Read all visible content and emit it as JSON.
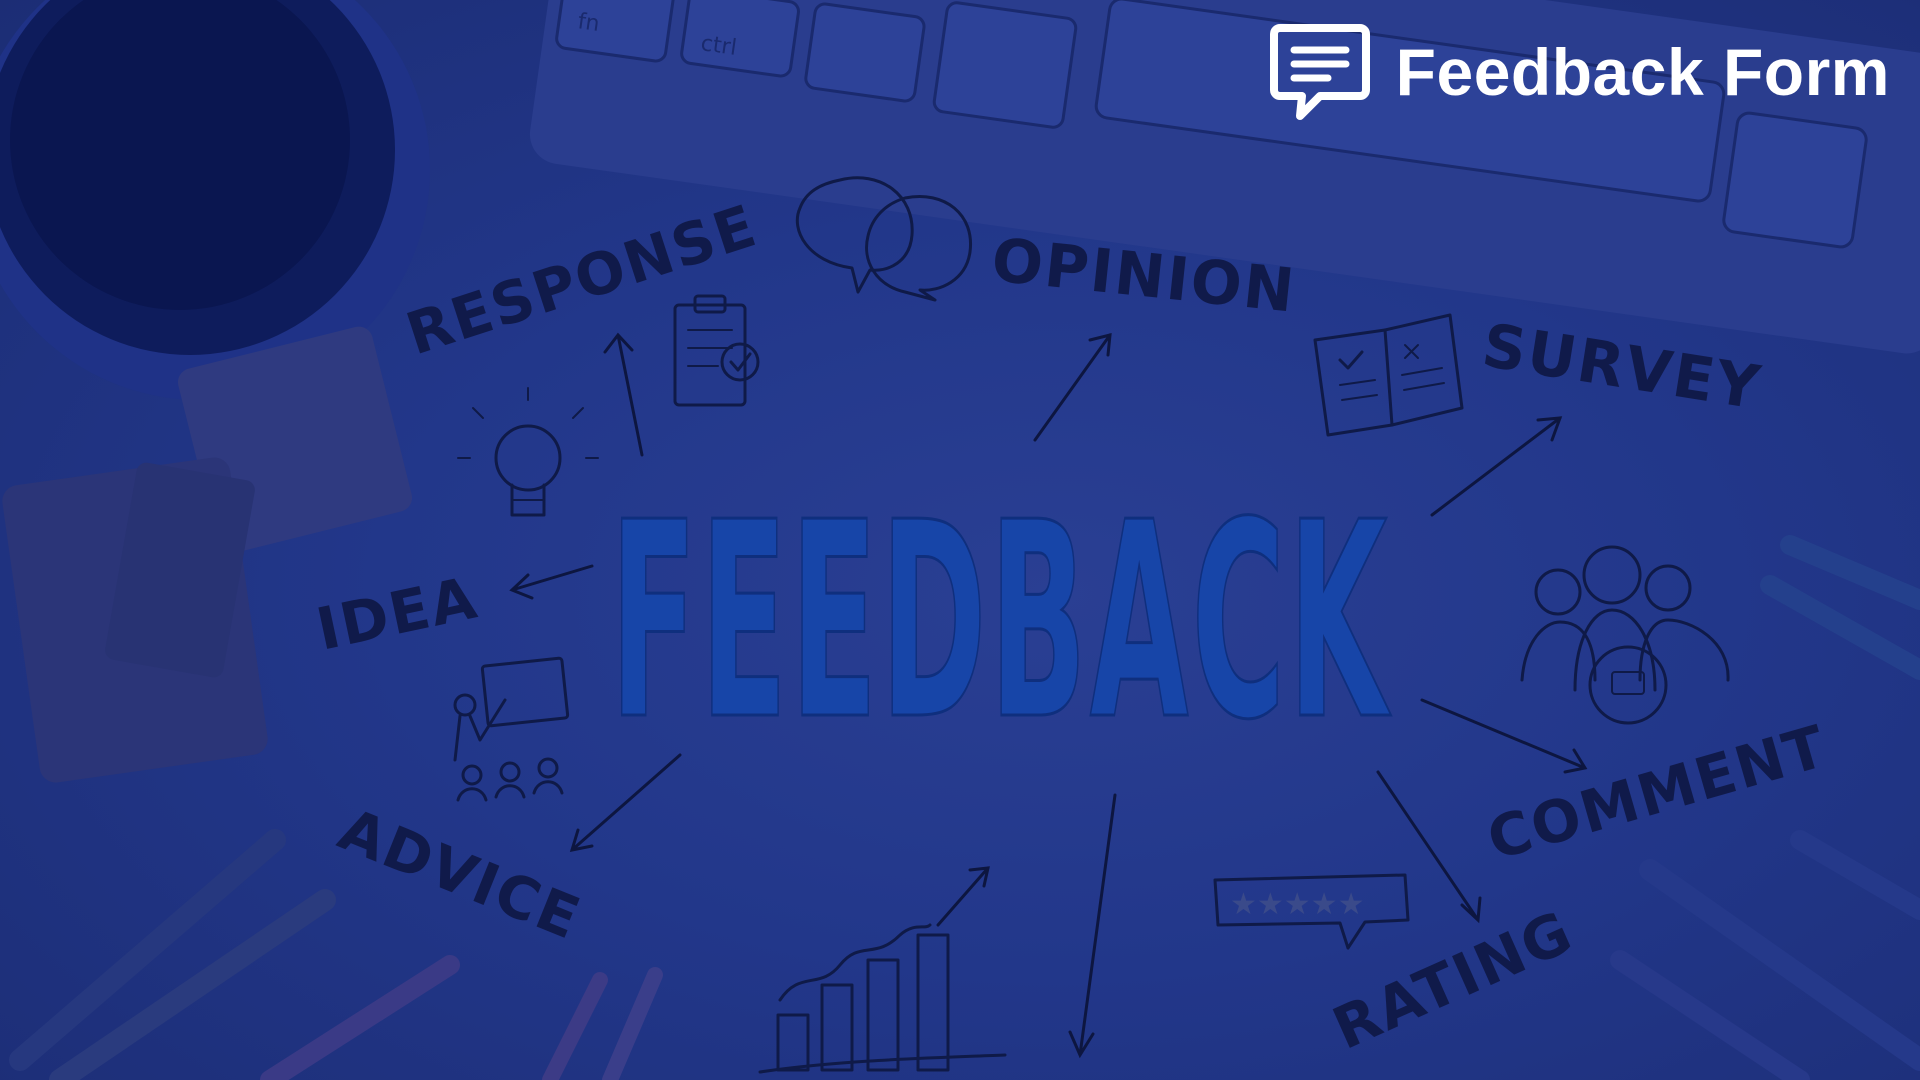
{
  "header": {
    "title": "Feedback Form",
    "icon": "chat-bubble-lines-icon"
  },
  "hero": {
    "main_word": "FEEDBACK",
    "concepts": {
      "response": "RESPONSE",
      "opinion": "OPINION",
      "survey": "SURVEY",
      "idea": "IDEA",
      "advice": "ADVICE",
      "comment": "COMMENT",
      "rating": "RATING"
    },
    "keyboard_keys": {
      "fn": "fn",
      "ctrl": "ctrl"
    }
  },
  "colors": {
    "overlay": "#21347f",
    "main_word": "#1745a8",
    "sketch_ink": "#0f1a48",
    "title_text": "#ffffff"
  }
}
